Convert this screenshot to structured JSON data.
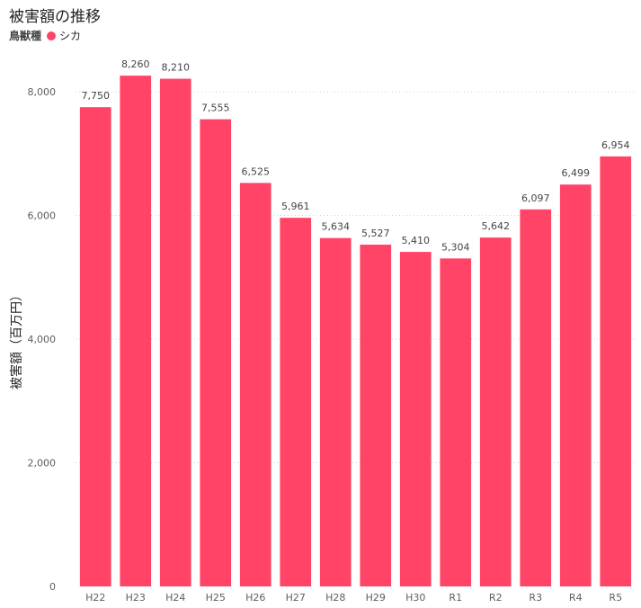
{
  "chart_data": {
    "type": "bar",
    "title": "被害額の推移",
    "legend_title": "鳥獣種",
    "series": [
      {
        "name": "シカ",
        "color": "#ff4468",
        "values": [
          7750,
          8260,
          8210,
          7555,
          6525,
          5961,
          5634,
          5527,
          5410,
          5304,
          5642,
          6097,
          6499,
          6954
        ]
      }
    ],
    "categories": [
      "H22",
      "H23",
      "H24",
      "H25",
      "H26",
      "H27",
      "H28",
      "H29",
      "H30",
      "R1",
      "R2",
      "R3",
      "R4",
      "R5"
    ],
    "data_labels": [
      "7,750",
      "8,260",
      "8,210",
      "7,555",
      "6,525",
      "5,961",
      "5,634",
      "5,527",
      "5,410",
      "5,304",
      "5,642",
      "6,097",
      "6,499",
      "6,954"
    ],
    "xlabel": "",
    "ylabel": "被害額（百万円）",
    "ylim": [
      0,
      8000
    ],
    "yticks": [
      0,
      2000,
      4000,
      6000,
      8000
    ],
    "ytick_labels": [
      "0",
      "2,000",
      "4,000",
      "6,000",
      "8,000"
    ],
    "grid": true,
    "legend_position": "top-left"
  }
}
